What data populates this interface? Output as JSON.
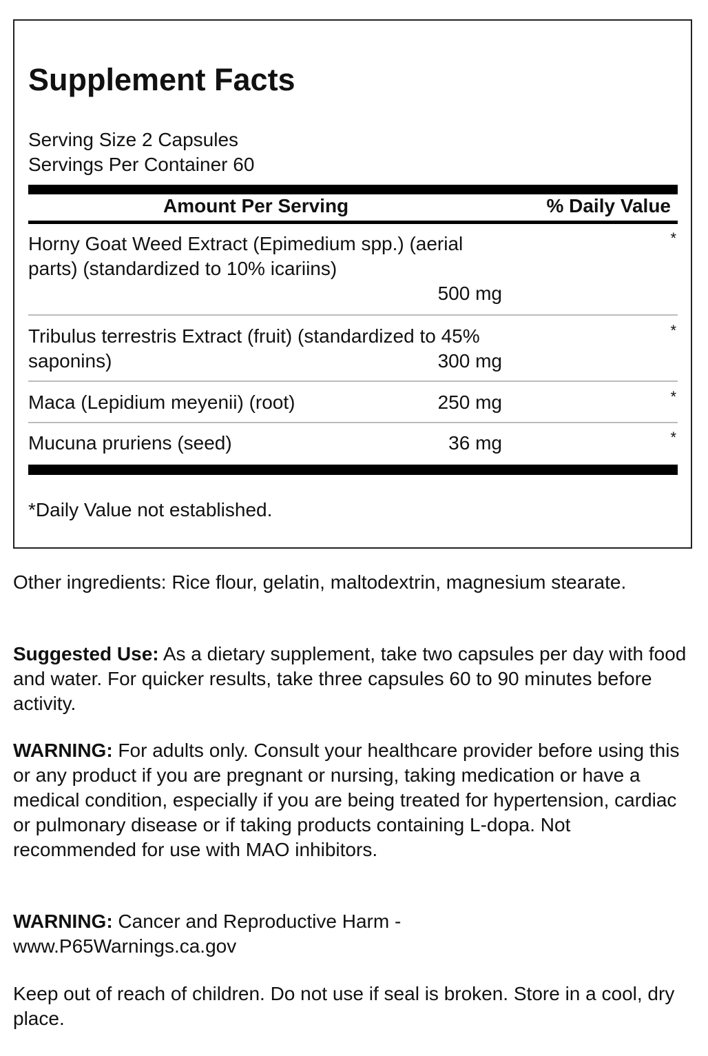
{
  "facts": {
    "title": "Supplement Facts",
    "serving_size": "Serving Size 2 Capsules",
    "servings_per_container": "Servings Per Container 60",
    "header_amount": "Amount Per Serving",
    "header_dv": "% Daily Value",
    "rows": [
      {
        "name": "Horny Goat Weed Extract (Epimedium spp.) (aerial parts) (standardized to 10% icariins)",
        "amount": "500 mg",
        "dv": "*"
      },
      {
        "name": "Tribulus terrestris Extract (fruit) (standardized to 45% saponins)",
        "amount": "300 mg",
        "dv": "*"
      },
      {
        "name": "Maca (Lepidium meyenii) (root)",
        "amount": "250 mg",
        "dv": "*"
      },
      {
        "name": "Mucuna pruriens (seed)",
        "amount": "36 mg",
        "dv": "*"
      }
    ],
    "footnote": "*Daily Value not established."
  },
  "other_ingredients": "Other ingredients: Rice flour, gelatin, maltodextrin, magnesium stearate.",
  "suggested_use": {
    "label": "Suggested Use:",
    "text": " As a dietary supplement, take two capsules per day with food and water. For quicker results, take three capsules 60 to 90 minutes before activity."
  },
  "warning1": {
    "label": "WARNING:",
    "text": " For adults only. Consult your healthcare provider before using this or any product if you are pregnant or nursing, taking medication or have a medical condition, especially if you are being treated for hypertension, cardiac or pulmonary disease or if taking products containing L-dopa. Not recommended for use with MAO inhibitors."
  },
  "warning2": {
    "label": "WARNING:",
    "text": " Cancer and Reproductive Harm - www.P65Warnings.ca.gov"
  },
  "storage": "Keep out of reach of children. Do not use if seal is broken. Store in a cool, dry place."
}
